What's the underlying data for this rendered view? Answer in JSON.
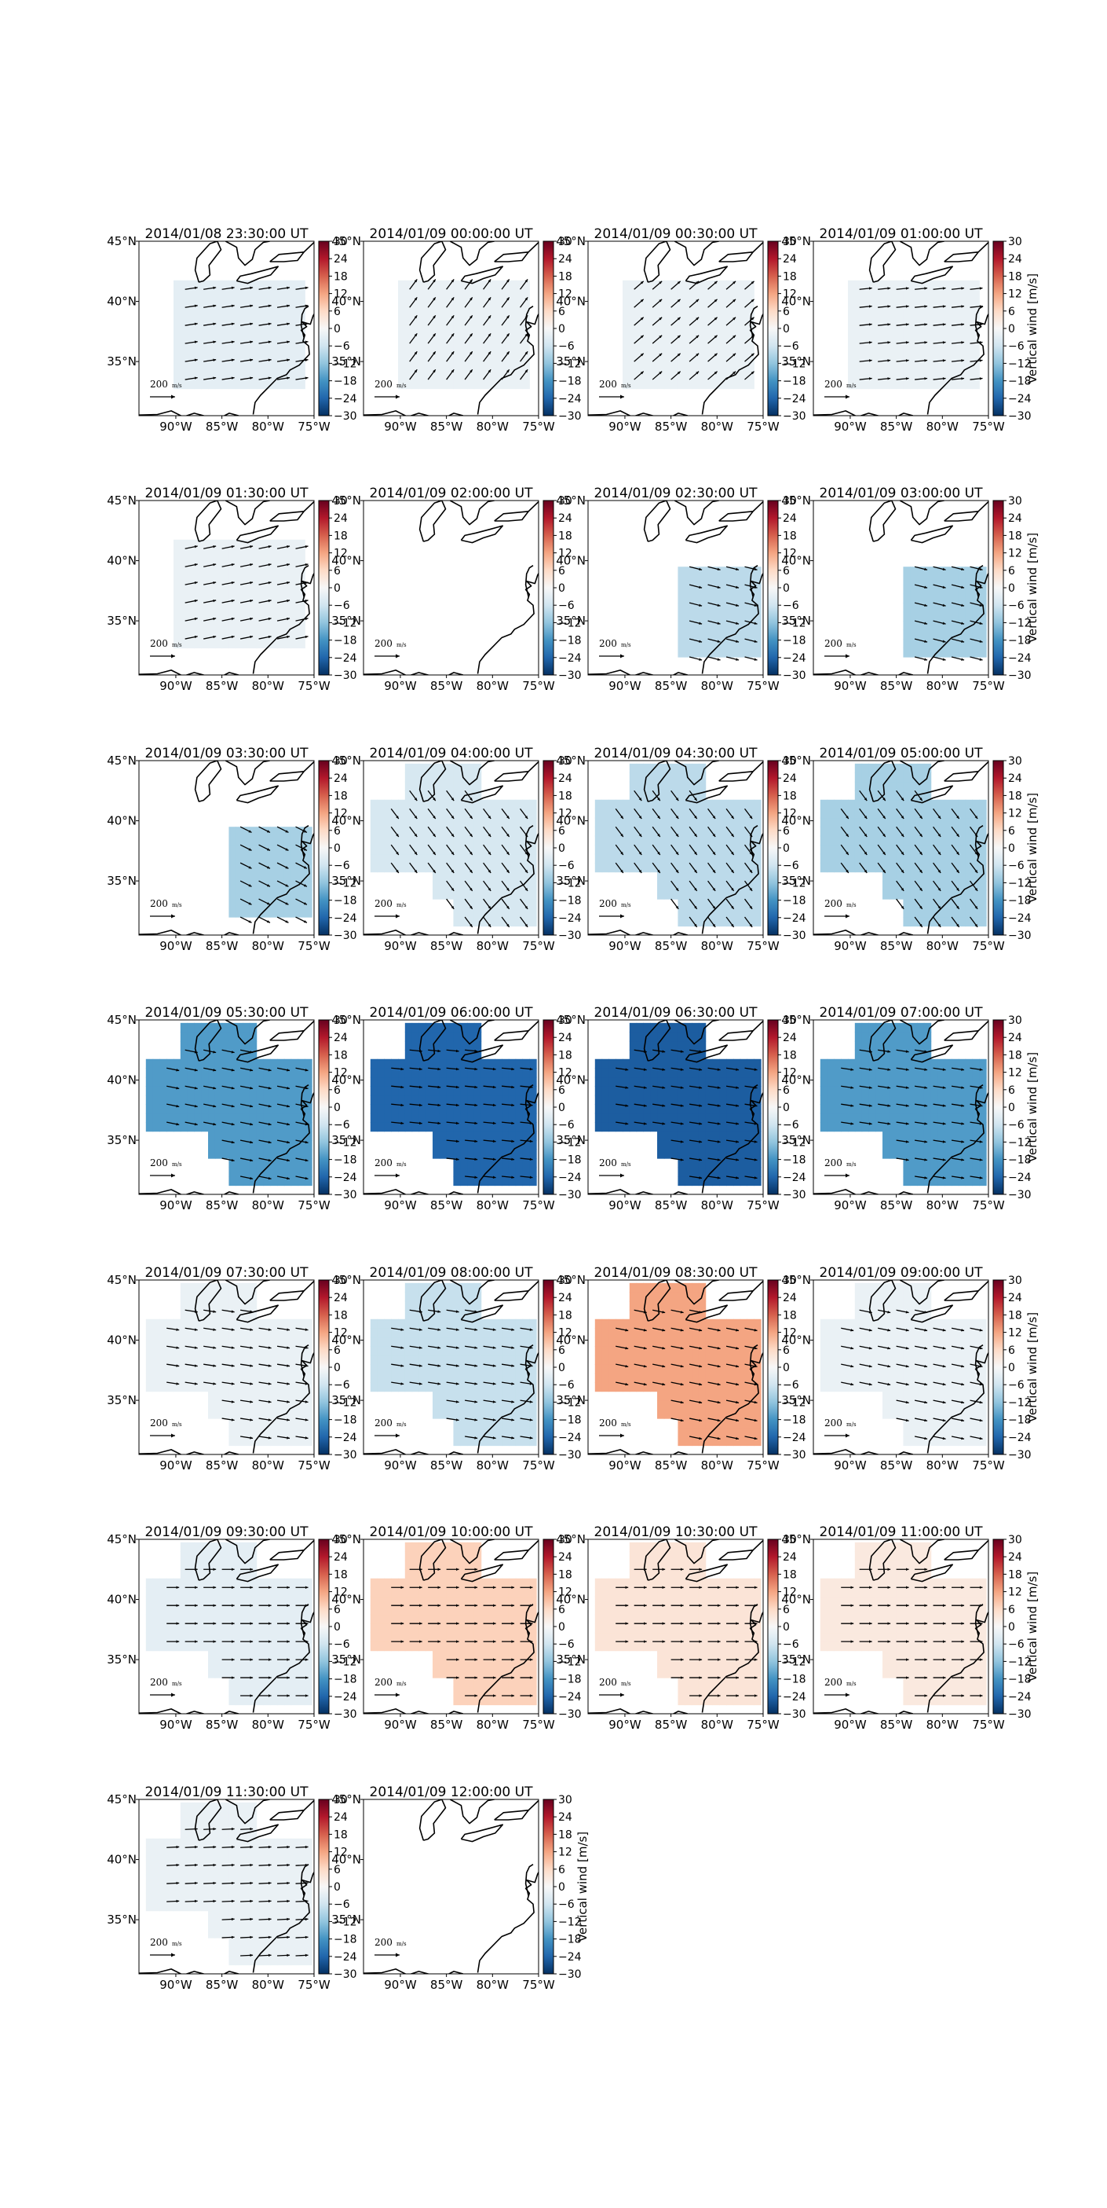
{
  "chart_data": {
    "type": "heatmap",
    "layout": {
      "rows": 7,
      "cols": 4,
      "panel_count": 26
    },
    "colorbar": {
      "label": "Vertical wind [m/s]",
      "ticks": [
        30,
        24,
        18,
        12,
        6,
        0,
        -6,
        -12,
        -18,
        -24,
        -30
      ],
      "range": [
        -30,
        30
      ],
      "colormap": "RdBu_r"
    },
    "axes": {
      "xticks": [
        "90°W",
        "85°W",
        "80°W",
        "75°W"
      ],
      "xtick_values": [
        -90,
        -85,
        -80,
        -75
      ],
      "yticks": [
        "45°N",
        "40°N",
        "35°N"
      ],
      "ytick_values": [
        45,
        40,
        35
      ],
      "xlim": [
        -94,
        -75
      ],
      "ylim": [
        30.5,
        45
      ]
    },
    "reference_vector": {
      "label": "200",
      "units": "m/s"
    },
    "panels": [
      {
        "time": "2014/01/08 23:30:00 UT",
        "value": -3,
        "shape": "west",
        "arrows": true,
        "dir": [
          1.0,
          0.15
        ],
        "colorbar_label": false
      },
      {
        "time": "2014/01/09 00:00:00 UT",
        "value": -2,
        "shape": "west",
        "arrows": true,
        "dir": [
          0.6,
          0.8
        ],
        "colorbar_label": false
      },
      {
        "time": "2014/01/09 00:30:00 UT",
        "value": -2,
        "shape": "west",
        "arrows": true,
        "dir": [
          0.75,
          0.65
        ],
        "colorbar_label": false
      },
      {
        "time": "2014/01/09 01:00:00 UT",
        "value": -2,
        "shape": "west",
        "arrows": true,
        "dir": [
          1.0,
          0.1
        ],
        "colorbar_label": true
      },
      {
        "time": "2014/01/09 01:30:00 UT",
        "value": -2,
        "shape": "west",
        "arrows": true,
        "dir": [
          1.0,
          0.2
        ],
        "colorbar_label": false
      },
      {
        "time": "2014/01/09 02:00:00 UT",
        "value": null,
        "shape": "none",
        "arrows": false,
        "dir": [
          1,
          0
        ],
        "colorbar_label": false
      },
      {
        "time": "2014/01/09 02:30:00 UT",
        "value": -8,
        "shape": "east",
        "arrows": true,
        "dir": [
          1.0,
          -0.25
        ],
        "colorbar_label": false
      },
      {
        "time": "2014/01/09 03:00:00 UT",
        "value": -10,
        "shape": "east",
        "arrows": true,
        "dir": [
          1.0,
          -0.25
        ],
        "colorbar_label": true
      },
      {
        "time": "2014/01/09 03:30:00 UT",
        "value": -10,
        "shape": "east",
        "arrows": true,
        "dir": [
          0.9,
          -0.45
        ],
        "colorbar_label": false
      },
      {
        "time": "2014/01/09 04:00:00 UT",
        "value": -5,
        "shape": "full",
        "arrows": true,
        "dir": [
          0.6,
          -0.8
        ],
        "colorbar_label": false
      },
      {
        "time": "2014/01/09 04:30:00 UT",
        "value": -8,
        "shape": "full",
        "arrows": true,
        "dir": [
          0.6,
          -0.8
        ],
        "colorbar_label": false
      },
      {
        "time": "2014/01/09 05:00:00 UT",
        "value": -10,
        "shape": "full",
        "arrows": true,
        "dir": [
          0.6,
          -0.8
        ],
        "colorbar_label": true
      },
      {
        "time": "2014/01/09 05:30:00 UT",
        "value": -17,
        "shape": "full",
        "arrows": true,
        "dir": [
          1.0,
          -0.2
        ],
        "colorbar_label": false
      },
      {
        "time": "2014/01/09 06:00:00 UT",
        "value": -24,
        "shape": "full",
        "arrows": true,
        "dir": [
          1.0,
          -0.1
        ],
        "colorbar_label": false
      },
      {
        "time": "2014/01/09 06:30:00 UT",
        "value": -25,
        "shape": "full",
        "arrows": true,
        "dir": [
          1.0,
          -0.15
        ],
        "colorbar_label": false
      },
      {
        "time": "2014/01/09 07:00:00 UT",
        "value": -17,
        "shape": "full",
        "arrows": true,
        "dir": [
          1.0,
          -0.15
        ],
        "colorbar_label": true
      },
      {
        "time": "2014/01/09 07:30:00 UT",
        "value": -2,
        "shape": "full",
        "arrows": true,
        "dir": [
          1.0,
          -0.15
        ],
        "colorbar_label": false
      },
      {
        "time": "2014/01/09 08:00:00 UT",
        "value": -7,
        "shape": "full",
        "arrows": true,
        "dir": [
          1.0,
          -0.15
        ],
        "colorbar_label": false
      },
      {
        "time": "2014/01/09 08:30:00 UT",
        "value": 12,
        "shape": "full",
        "arrows": true,
        "dir": [
          1.0,
          -0.2
        ],
        "colorbar_label": false
      },
      {
        "time": "2014/01/09 09:00:00 UT",
        "value": -2,
        "shape": "full",
        "arrows": true,
        "dir": [
          1.0,
          -0.2
        ],
        "colorbar_label": true
      },
      {
        "time": "2014/01/09 09:30:00 UT",
        "value": -3,
        "shape": "full",
        "arrows": true,
        "dir": [
          1.0,
          0.0
        ],
        "colorbar_label": false
      },
      {
        "time": "2014/01/09 10:00:00 UT",
        "value": 7,
        "shape": "full",
        "arrows": true,
        "dir": [
          1.0,
          0.0
        ],
        "colorbar_label": false
      },
      {
        "time": "2014/01/09 10:30:00 UT",
        "value": 4,
        "shape": "full",
        "arrows": true,
        "dir": [
          1.0,
          0.0
        ],
        "colorbar_label": false
      },
      {
        "time": "2014/01/09 11:00:00 UT",
        "value": 3,
        "shape": "full",
        "arrows": true,
        "dir": [
          1.0,
          0.0
        ],
        "colorbar_label": true
      },
      {
        "time": "2014/01/09 11:30:00 UT",
        "value": -2,
        "shape": "full",
        "arrows": true,
        "dir": [
          1.0,
          0.05
        ],
        "colorbar_label": false
      },
      {
        "time": "2014/01/09 12:00:00 UT",
        "value": null,
        "shape": "none",
        "arrows": false,
        "dir": [
          1,
          0
        ],
        "colorbar_label": true
      }
    ]
  }
}
